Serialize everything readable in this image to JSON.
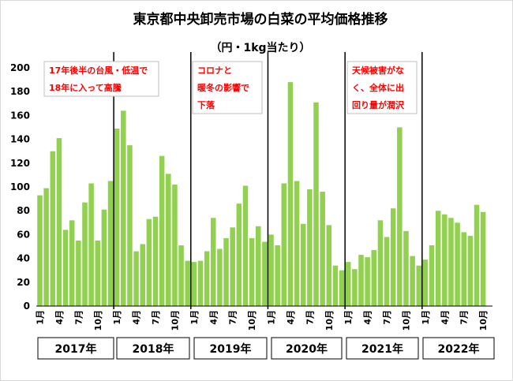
{
  "chart_data": {
    "type": "bar",
    "title": "東京都中央卸売市場の白菜の平均価格推移",
    "subtitle": "（円・1kg当たり）",
    "ylim": [
      0,
      200
    ],
    "yticks": [
      0,
      20,
      40,
      60,
      80,
      100,
      120,
      140,
      160,
      180,
      200
    ],
    "grid": false,
    "bar_color": "#92D050",
    "x_tick_labels": [
      "1月",
      "4月",
      "7月",
      "10月"
    ],
    "years": [
      {
        "label": "2017年",
        "values": [
          93,
          99,
          130,
          141,
          64,
          72,
          55,
          87,
          103,
          55,
          81,
          105
        ]
      },
      {
        "label": "2018年",
        "values": [
          149,
          164,
          135,
          46,
          52,
          73,
          75,
          126,
          111,
          102,
          51,
          38
        ]
      },
      {
        "label": "2019年",
        "values": [
          37,
          38,
          46,
          74,
          48,
          57,
          66,
          86,
          101,
          57,
          67,
          54
        ]
      },
      {
        "label": "2020年",
        "values": [
          60,
          51,
          103,
          188,
          105,
          69,
          98,
          171,
          96,
          68,
          34,
          30
        ]
      },
      {
        "label": "2021年",
        "values": [
          37,
          31,
          43,
          41,
          47,
          72,
          58,
          82,
          150,
          63,
          42,
          34
        ]
      },
      {
        "label": "2022年",
        "values": [
          39,
          51,
          80,
          77,
          74,
          70,
          62,
          59,
          85,
          79
        ]
      }
    ],
    "annotations": [
      {
        "lines": [
          "17年後半の台風・低温で",
          "18年に入って高騰"
        ],
        "color": "#FF0000"
      },
      {
        "lines": [
          "コロナと",
          "暖冬の影響で",
          "下落"
        ],
        "color": "#FF0000"
      },
      {
        "lines": [
          "天候被害がな",
          "く、全体に出",
          "回り量が潤沢"
        ],
        "color": "#FF0000"
      }
    ]
  }
}
